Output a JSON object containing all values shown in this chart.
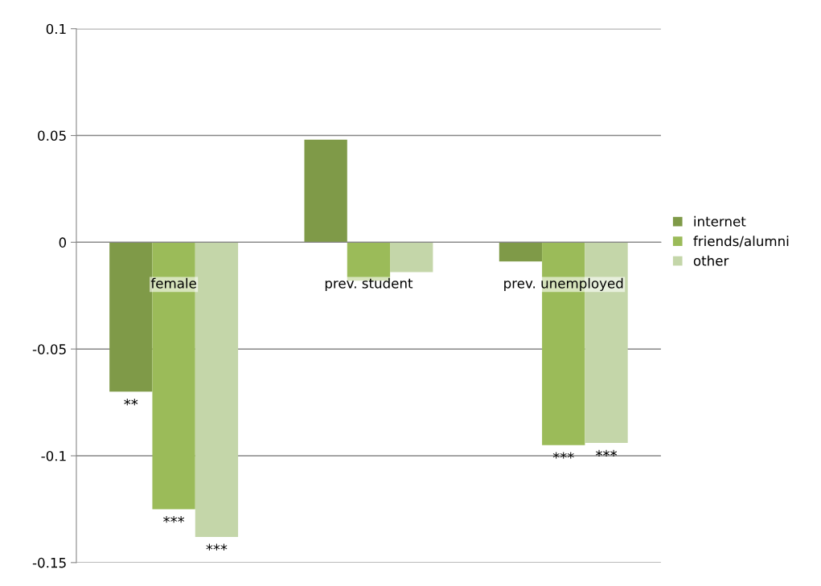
{
  "chart_data": {
    "type": "bar",
    "categories": [
      "female",
      "prev. student",
      "prev. unemployed"
    ],
    "series": [
      {
        "name": "internet",
        "color": "#7f9a48",
        "values": [
          -0.07,
          0.048,
          -0.009
        ],
        "value_labels": [
          "**",
          null,
          null
        ]
      },
      {
        "name": "friends/alumni",
        "color": "#9bbb59",
        "values": [
          -0.125,
          -0.018,
          -0.095
        ],
        "value_labels": [
          "***",
          null,
          "***"
        ]
      },
      {
        "name": "other",
        "color": "#c4d6a9",
        "values": [
          -0.138,
          -0.014,
          -0.094
        ],
        "value_labels": [
          "***",
          null,
          "***"
        ]
      }
    ],
    "ylim": [
      -0.15,
      0.1
    ],
    "yticks": [
      -0.15,
      -0.1,
      -0.05,
      0,
      0.05,
      0.1
    ],
    "grid": "y",
    "legend": "right"
  }
}
